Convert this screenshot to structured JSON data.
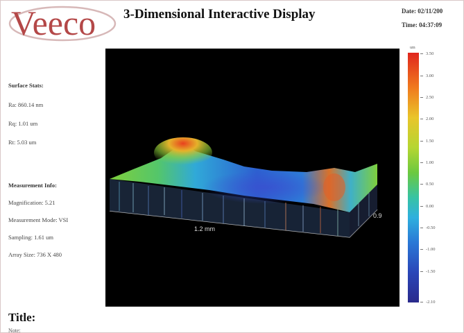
{
  "header": {
    "logo_text": "Veeco",
    "title": "3-Dimensional Interactive Display",
    "date": "Date: 02/11/200",
    "time": "Time: 04:37:09"
  },
  "surface_stats": {
    "heading": "Surface Stats:",
    "ra": "Ra: 860.14 nm",
    "rq": "Rq: 1.01 um",
    "rt": "Rt: 5.03 um"
  },
  "measurement_info": {
    "heading": "Measurement Info:",
    "magnification": "Magnification: 5.21",
    "mode": "Measurement Mode: VSI",
    "sampling": "Sampling: 1.61 um",
    "array_size": "Array Size: 736 X 480"
  },
  "plot": {
    "x_axis_label": "1.2 mm",
    "y_axis_label": "0.9"
  },
  "colorbar": {
    "unit": "um",
    "ticks": [
      "3.50",
      "3.00",
      "2.50",
      "2.00",
      "1.50",
      "1.00",
      "0.50",
      "0.00",
      "-0.50",
      "-1.00",
      "-1.50",
      "-2.10"
    ]
  },
  "footer": {
    "title_label": "Title:",
    "note_label": "Note:"
  },
  "colors": {
    "plot_background": "#000000",
    "logo_color": "#b44848"
  }
}
